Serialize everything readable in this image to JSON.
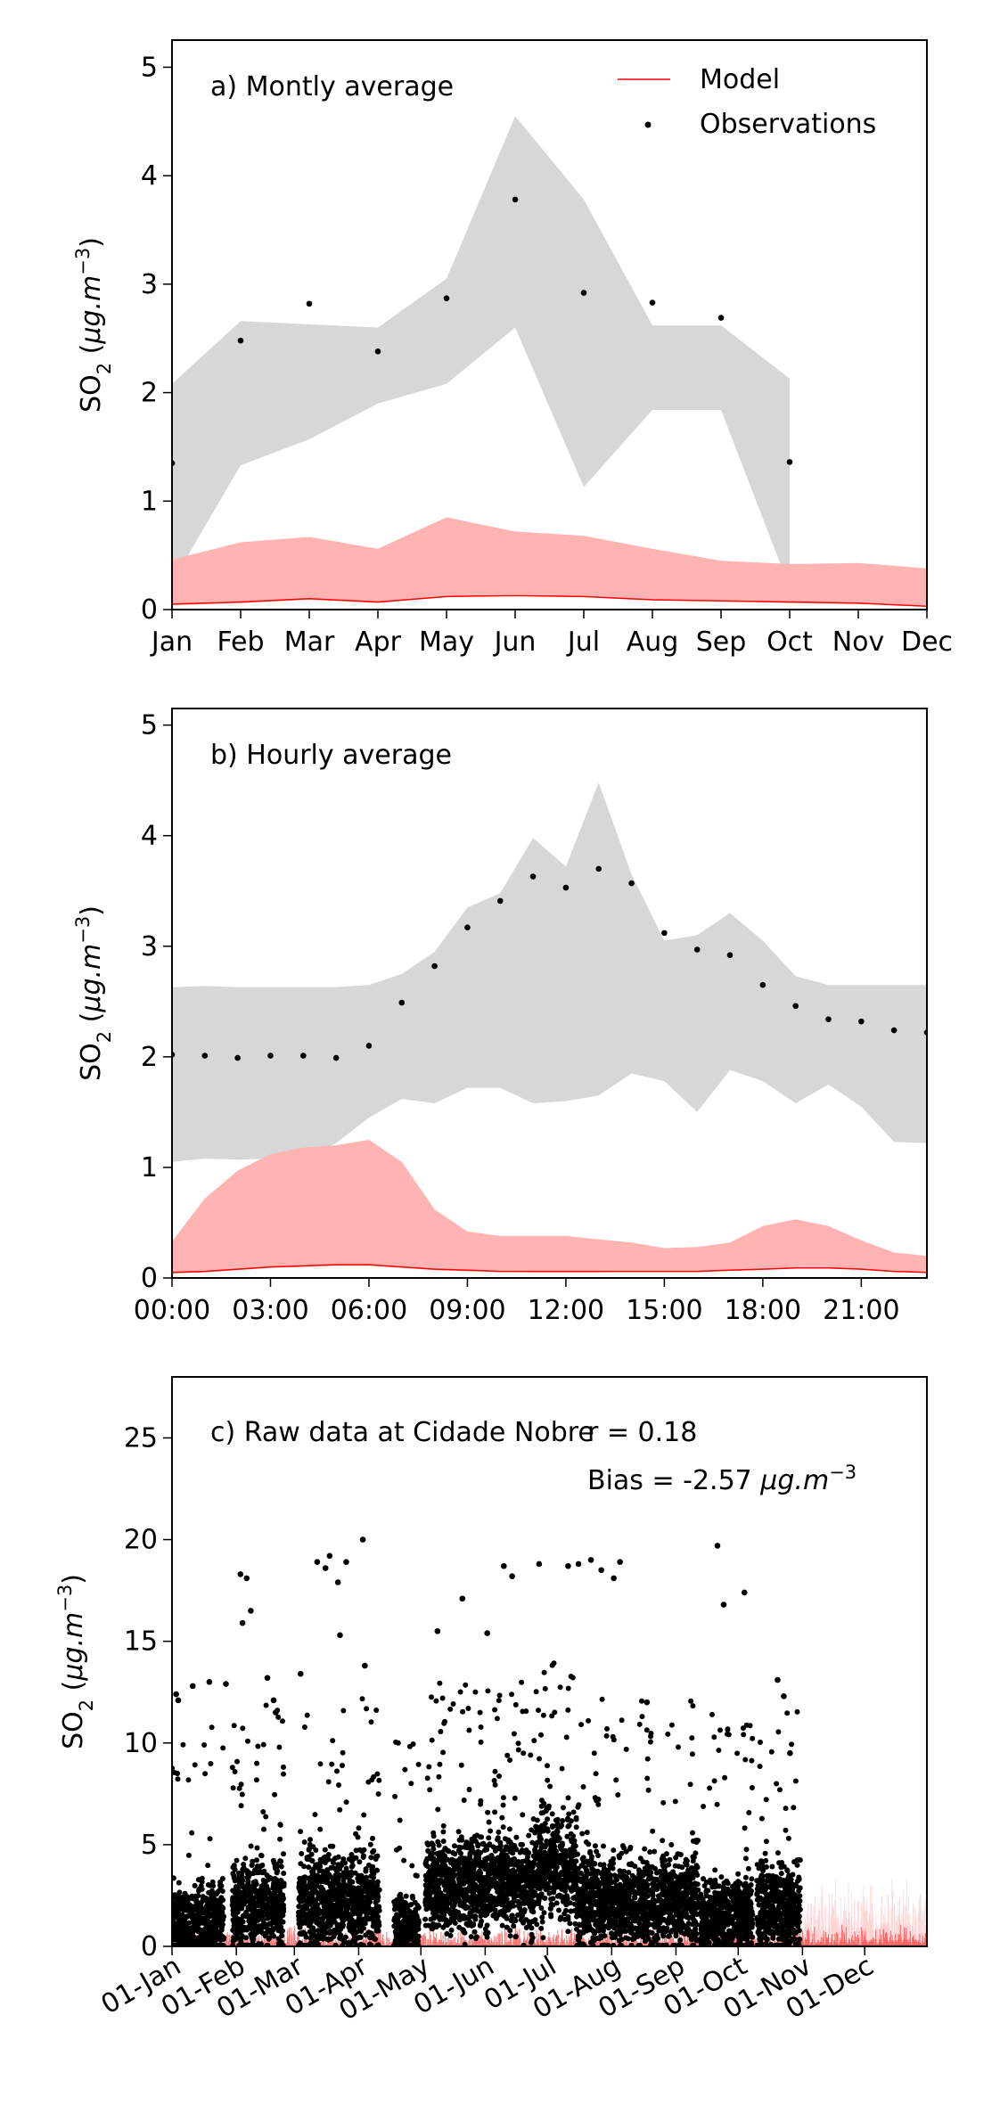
{
  "chart_data": [
    {
      "type": "line",
      "title": "a) Montly average",
      "ylabel_main": "SO",
      "ylabel_sub": "2",
      "ylabel_unit_open": "(",
      "ylabel_unit_italic": "μg.m",
      "ylabel_unit_exp": "−3",
      "ylabel_unit_close": ")",
      "ylim": [
        0,
        5.25
      ],
      "yticks": [
        0,
        1,
        2,
        3,
        4,
        5
      ],
      "xlim": [
        1,
        12
      ],
      "xticks": [
        1,
        2,
        3,
        4,
        5,
        6,
        7,
        8,
        9,
        10,
        11,
        12
      ],
      "xticklabels": [
        "Jan",
        "Feb",
        "Mar",
        "Apr",
        "May",
        "Jun",
        "Jul",
        "Aug",
        "Sep",
        "Oct",
        "Nov",
        "Dec"
      ],
      "legend": {
        "placement": "top-right",
        "entries": [
          {
            "label": "Model",
            "kind": "line",
            "color": "#ff0000"
          },
          {
            "label": "Observations",
            "kind": "marker",
            "color": "#000000"
          }
        ]
      },
      "obs_band": {
        "x": [
          1,
          2,
          3,
          4,
          5,
          6,
          7,
          8,
          9,
          10
        ],
        "lower": [
          0.25,
          1.33,
          1.57,
          1.9,
          2.08,
          2.6,
          1.13,
          1.84,
          1.84,
          0.2
        ],
        "upper": [
          2.08,
          2.66,
          2.63,
          2.6,
          3.05,
          4.55,
          3.78,
          2.62,
          2.62,
          2.13
        ],
        "color": "#d7d7d7"
      },
      "model_band": {
        "x": [
          1,
          2,
          3,
          4,
          5,
          6,
          7,
          8,
          9,
          10,
          11,
          12
        ],
        "lower": [
          0.04,
          0.06,
          0.09,
          0.06,
          0.12,
          0.14,
          0.12,
          0.09,
          0.08,
          0.06,
          0.05,
          0.04
        ],
        "upper": [
          0.46,
          0.62,
          0.67,
          0.56,
          0.85,
          0.72,
          0.68,
          0.56,
          0.45,
          0.42,
          0.43,
          0.38
        ],
        "color": "#ffb3b3"
      },
      "model_line": {
        "x": [
          1,
          2,
          3,
          4,
          5,
          6,
          7,
          8,
          9,
          10,
          11,
          12
        ],
        "y": [
          0.05,
          0.07,
          0.1,
          0.07,
          0.12,
          0.13,
          0.12,
          0.09,
          0.08,
          0.07,
          0.06,
          0.03
        ],
        "color": "#ff0000"
      },
      "observations": {
        "x": [
          1,
          2,
          3,
          4,
          5,
          6,
          7,
          8,
          9,
          10
        ],
        "y": [
          1.35,
          2.48,
          2.82,
          2.38,
          2.87,
          3.78,
          2.92,
          2.83,
          2.69,
          1.36
        ]
      }
    },
    {
      "type": "line",
      "title": "b) Hourly average",
      "ylabel_main": "SO",
      "ylabel_sub": "2",
      "ylabel_unit_open": "(",
      "ylabel_unit_italic": "μg.m",
      "ylabel_unit_exp": "−3",
      "ylabel_unit_close": ")",
      "ylim": [
        0,
        5.15
      ],
      "yticks": [
        0,
        1,
        2,
        3,
        4,
        5
      ],
      "xlim": [
        0,
        23
      ],
      "xticks": [
        0,
        3,
        6,
        9,
        12,
        15,
        18,
        21
      ],
      "xticklabels": [
        "00:00",
        "03:00",
        "06:00",
        "09:00",
        "12:00",
        "15:00",
        "18:00",
        "21:00"
      ],
      "obs_band": {
        "x": [
          0,
          1,
          2,
          3,
          4,
          5,
          6,
          7,
          8,
          9,
          10,
          11,
          12,
          13,
          14,
          15,
          16,
          17,
          18,
          19,
          20,
          21,
          22,
          23
        ],
        "lower": [
          1.05,
          1.08,
          1.07,
          1.08,
          1.07,
          1.22,
          1.45,
          1.62,
          1.58,
          1.72,
          1.72,
          1.58,
          1.6,
          1.65,
          1.85,
          1.78,
          1.5,
          1.88,
          1.78,
          1.58,
          1.75,
          1.55,
          1.23,
          1.22
        ],
        "upper": [
          2.63,
          2.64,
          2.63,
          2.63,
          2.63,
          2.63,
          2.65,
          2.75,
          2.95,
          3.35,
          3.48,
          3.98,
          3.72,
          4.48,
          3.65,
          3.05,
          3.1,
          3.3,
          3.05,
          2.73,
          2.65,
          2.65,
          2.65,
          2.65
        ],
        "color": "#d7d7d7"
      },
      "model_band": {
        "x": [
          0,
          1,
          2,
          3,
          4,
          5,
          6,
          7,
          8,
          9,
          10,
          11,
          12,
          13,
          14,
          15,
          16,
          17,
          18,
          19,
          20,
          21,
          22,
          23
        ],
        "lower": [
          0.04,
          0.05,
          0.07,
          0.09,
          0.1,
          0.11,
          0.11,
          0.09,
          0.07,
          0.06,
          0.06,
          0.05,
          0.05,
          0.05,
          0.06,
          0.06,
          0.06,
          0.07,
          0.08,
          0.09,
          0.09,
          0.08,
          0.06,
          0.05
        ],
        "upper": [
          0.33,
          0.72,
          0.97,
          1.12,
          1.18,
          1.2,
          1.25,
          1.05,
          0.62,
          0.42,
          0.38,
          0.38,
          0.38,
          0.35,
          0.32,
          0.27,
          0.28,
          0.32,
          0.47,
          0.53,
          0.47,
          0.34,
          0.23,
          0.2
        ],
        "color": "#ffb3b3"
      },
      "model_line": {
        "x": [
          0,
          1,
          2,
          3,
          4,
          5,
          6,
          7,
          8,
          9,
          10,
          11,
          12,
          13,
          14,
          15,
          16,
          17,
          18,
          19,
          20,
          21,
          22,
          23
        ],
        "y": [
          0.05,
          0.06,
          0.08,
          0.1,
          0.11,
          0.12,
          0.12,
          0.1,
          0.08,
          0.07,
          0.06,
          0.06,
          0.06,
          0.06,
          0.06,
          0.06,
          0.06,
          0.07,
          0.08,
          0.09,
          0.09,
          0.08,
          0.06,
          0.05
        ],
        "color": "#ff0000"
      },
      "observations": {
        "x": [
          0,
          1,
          2,
          3,
          4,
          5,
          6,
          7,
          8,
          9,
          10,
          11,
          12,
          13,
          14,
          15,
          16,
          17,
          18,
          19,
          20,
          21,
          22,
          23
        ],
        "y": [
          2.02,
          2.01,
          1.99,
          2.01,
          2.01,
          1.99,
          2.1,
          2.49,
          2.82,
          3.17,
          3.41,
          3.63,
          3.53,
          3.7,
          3.57,
          3.12,
          2.97,
          2.92,
          2.65,
          2.46,
          2.34,
          2.32,
          2.24,
          2.22
        ]
      }
    },
    {
      "type": "scatter",
      "title": "c) Raw data at Cidade Nobre",
      "annotation_r": "r = 0.18",
      "annotation_bias_prefix": "Bias = -2.57",
      "annotation_bias_italic": "μg.m",
      "annotation_bias_exp": "−3",
      "ylabel_main": "SO",
      "ylabel_sub": "2",
      "ylabel_unit_open": "(",
      "ylabel_unit_italic": "μg.m",
      "ylabel_unit_exp": "−3",
      "ylabel_unit_close": ")",
      "ylim": [
        0,
        28
      ],
      "yticks": [
        0,
        5,
        10,
        15,
        20,
        25
      ],
      "xlim": [
        "2019-01-01",
        "2019-12-31"
      ],
      "xticks": [
        "2019-01-01",
        "2019-02-01",
        "2019-03-01",
        "2019-04-01",
        "2019-05-01",
        "2019-06-01",
        "2019-07-01",
        "2019-08-01",
        "2019-09-01",
        "2019-10-01",
        "2019-11-01",
        "2019-12-01"
      ],
      "xticklabels": [
        "01-Jan",
        "01-Feb",
        "01-Mar",
        "01-Apr",
        "01-May",
        "01-Jun",
        "01-Jul",
        "01-Aug",
        "01-Sep",
        "01-Oct",
        "01-Nov",
        "01-Dec"
      ],
      "observation_periods": [
        {
          "start": "2019-01-01",
          "end": "2019-01-26",
          "median": 1.0,
          "spread": 1.4
        },
        {
          "start": "2019-01-30",
          "end": "2019-02-24",
          "median": 2.0,
          "spread": 1.6
        },
        {
          "start": "2019-03-03",
          "end": "2019-04-11",
          "median": 2.2,
          "spread": 1.5
        },
        {
          "start": "2019-04-18",
          "end": "2019-04-30",
          "median": 0.9,
          "spread": 1.0
        },
        {
          "start": "2019-05-03",
          "end": "2019-06-25",
          "median": 3.0,
          "spread": 1.6
        },
        {
          "start": "2019-06-25",
          "end": "2019-07-15",
          "median": 4.0,
          "spread": 1.8
        },
        {
          "start": "2019-07-15",
          "end": "2019-09-12",
          "median": 2.2,
          "spread": 1.5
        },
        {
          "start": "2019-09-13",
          "end": "2019-10-08",
          "median": 1.4,
          "spread": 1.3
        },
        {
          "start": "2019-10-10",
          "end": "2019-10-31",
          "median": 1.8,
          "spread": 1.5
        }
      ],
      "observation_extremes": {
        "x": [
          "2019-01-03",
          "2019-01-04",
          "2019-01-11",
          "2019-01-19",
          "2019-01-27",
          "2019-02-03",
          "2019-02-04",
          "2019-02-06",
          "2019-02-08",
          "2019-02-16",
          "2019-02-19",
          "2019-02-20",
          "2019-03-04",
          "2019-03-12",
          "2019-03-16",
          "2019-03-18",
          "2019-03-22",
          "2019-03-23",
          "2019-03-26",
          "2019-04-03",
          "2019-04-04",
          "2019-05-09",
          "2019-05-21",
          "2019-06-02",
          "2019-06-10",
          "2019-06-14",
          "2019-06-27",
          "2019-07-11",
          "2019-07-16",
          "2019-07-22",
          "2019-07-27",
          "2019-08-02",
          "2019-08-05",
          "2019-08-18",
          "2019-09-21",
          "2019-09-24",
          "2019-10-04",
          "2019-10-20",
          "2019-10-23",
          "2019-10-26"
        ],
        "y": [
          12.4,
          12.1,
          12.8,
          13.0,
          12.9,
          18.3,
          15.9,
          18.1,
          16.5,
          13.2,
          12.1,
          11.5,
          13.4,
          18.9,
          18.6,
          19.2,
          17.9,
          15.3,
          18.9,
          20.0,
          13.8,
          15.5,
          17.1,
          15.4,
          18.7,
          18.2,
          18.8,
          18.7,
          18.8,
          19.0,
          18.5,
          18.1,
          18.9,
          12.0,
          19.7,
          16.8,
          17.4,
          13.1,
          12.3,
          9.5
        ]
      },
      "model_color": "#ff0000",
      "model_level": 0.3
    }
  ]
}
